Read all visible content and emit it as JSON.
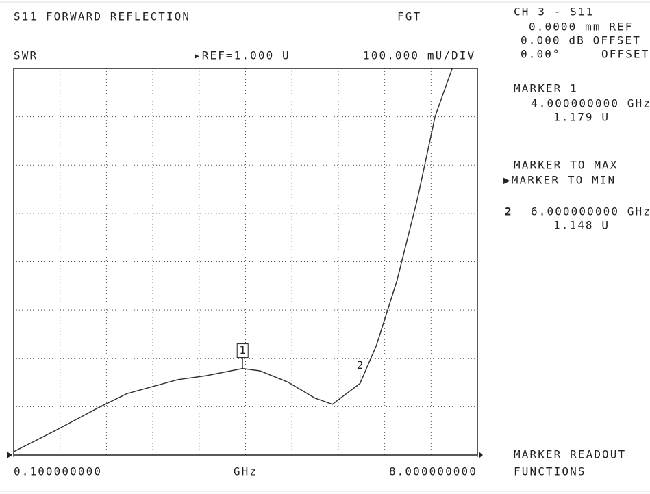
{
  "header": {
    "title": "S11 FORWARD REFLECTION",
    "mode": "FGT",
    "format": "SWR",
    "reference": "▸REF=1.000 U",
    "scale": "100.000 mU/DIV"
  },
  "side_panel": {
    "channel": "CH 3 - S11",
    "ref_line": "0.0000 mm REF",
    "offset_db": "0.000 dB OFFSET",
    "offset_deg": "0.00°",
    "offset_deg_label": "OFFSET",
    "marker_title": "MARKER 1",
    "marker1_freq": "4.000000000 GHz",
    "marker1_value": "1.179 U",
    "menu": [
      "MARKER TO MAX",
      "▶MARKER TO MIN"
    ],
    "marker2_number": "2",
    "marker2_freq": "6.000000000 GHz",
    "marker2_value": "1.148 U",
    "footer": [
      "MARKER READOUT",
      "FUNCTIONS"
    ]
  },
  "chart_data": {
    "type": "line",
    "x": [
      0.1,
      0.8,
      1.56,
      2.03,
      2.9,
      3.37,
      4.0,
      4.3,
      4.77,
      5.23,
      5.53,
      6.0,
      6.28,
      6.63,
      6.98,
      7.28,
      7.57
    ],
    "values": [
      1.007,
      1.05,
      1.099,
      1.127,
      1.156,
      1.164,
      1.179,
      1.174,
      1.151,
      1.118,
      1.105,
      1.148,
      1.227,
      1.361,
      1.531,
      1.701,
      1.8
    ],
    "color": "#333333",
    "xlim": [
      0.1,
      8
    ],
    "ylim": [
      1.0,
      1.8
    ],
    "xticks": [
      {
        "value": 0.1,
        "label": "0.100000000"
      },
      {
        "value": 8,
        "label": "8.000000000"
      }
    ],
    "x_label": "GHz",
    "markers": [
      {
        "label": "1",
        "x": 4,
        "y": 1.179
      },
      {
        "label": "2",
        "x": 6,
        "y": 1.148
      }
    ]
  }
}
